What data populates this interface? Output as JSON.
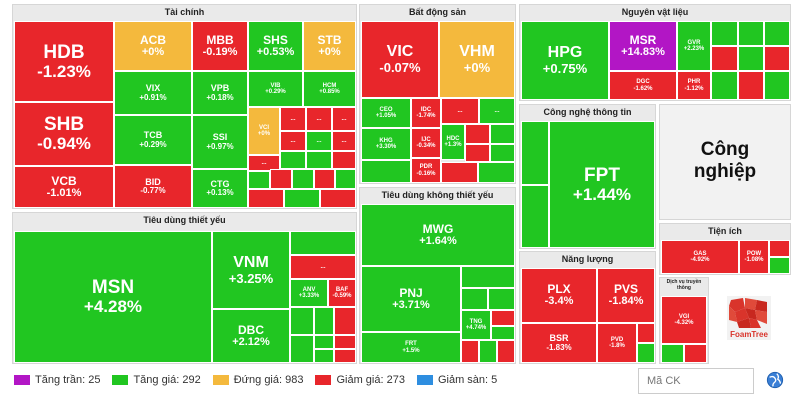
{
  "sectors": {
    "finance": "Tài chính",
    "real_estate": "Bất động sản",
    "materials": "Nguyên vật liệu",
    "it": "Công nghệ thông tin",
    "industrial": "Công nghiệp",
    "staples": "Tiêu dùng thiết yếu",
    "discretionary": "Tiêu dùng không thiết yếu",
    "energy": "Năng lượng",
    "utilities": "Tiện ích",
    "travel_services": "Dịch vụ truyền thông"
  },
  "stocks": {
    "HDB": {
      "symbol": "HDB",
      "change": "-1.23%"
    },
    "ACB": {
      "symbol": "ACB",
      "change": "+0%"
    },
    "MBB": {
      "symbol": "MBB",
      "change": "-0.19%"
    },
    "SHS": {
      "symbol": "SHS",
      "change": "+0.53%"
    },
    "STB": {
      "symbol": "STB",
      "change": "+0%"
    },
    "VIX": {
      "symbol": "VIX",
      "change": "+0.91%"
    },
    "VPB": {
      "symbol": "VPB",
      "change": "+0.18%"
    },
    "VIB": {
      "symbol": "VIB",
      "change": "+0.29%"
    },
    "HCM": {
      "symbol": "HCM",
      "change": "+0.85%"
    },
    "SHB": {
      "symbol": "SHB",
      "change": "-0.94%"
    },
    "TCB": {
      "symbol": "TCB",
      "change": "+0.29%"
    },
    "SSI": {
      "symbol": "SSI",
      "change": "+0.97%"
    },
    "VCI": {
      "symbol": "VCI",
      "change": "+0%"
    },
    "VCB": {
      "symbol": "VCB",
      "change": "-1.01%"
    },
    "BID": {
      "symbol": "BID",
      "change": "-0.77%"
    },
    "CTG": {
      "symbol": "CTG",
      "change": "+0.13%"
    },
    "VIC": {
      "symbol": "VIC",
      "change": "-0.07%"
    },
    "VHM": {
      "symbol": "VHM",
      "change": "+0%"
    },
    "CEO": {
      "symbol": "CEO",
      "change": "+1.05%"
    },
    "IDC": {
      "symbol": "IDC",
      "change": "-1.74%"
    },
    "KHG": {
      "symbol": "KHG",
      "change": "+3.30%"
    },
    "IJC": {
      "symbol": "IJC",
      "change": "-0.34%"
    },
    "HDC": {
      "symbol": "HDC",
      "change": "+1.3%"
    },
    "PDR": {
      "symbol": "PDR",
      "change": "-0.16%"
    },
    "HPG": {
      "symbol": "HPG",
      "change": "+0.75%"
    },
    "MSR": {
      "symbol": "MSR",
      "change": "+14.83%"
    },
    "GVR": {
      "symbol": "GVR",
      "change": "+2.23%"
    },
    "DGC": {
      "symbol": "DGC",
      "change": "-1.62%"
    },
    "PHR": {
      "symbol": "PHR",
      "change": "-1.12%"
    },
    "FPT": {
      "symbol": "FPT",
      "change": "+1.44%"
    },
    "MSN": {
      "symbol": "MSN",
      "change": "+4.28%"
    },
    "VNM": {
      "symbol": "VNM",
      "change": "+3.25%"
    },
    "DBC": {
      "symbol": "DBC",
      "change": "+2.12%"
    },
    "ANV": {
      "symbol": "ANV",
      "change": "+3.33%"
    },
    "BAF": {
      "symbol": "BAF",
      "change": "-0.59%"
    },
    "MWG": {
      "symbol": "MWG",
      "change": "+1.64%"
    },
    "PNJ": {
      "symbol": "PNJ",
      "change": "+3.71%"
    },
    "FRT": {
      "symbol": "FRT",
      "change": "+1.5%"
    },
    "TNG": {
      "symbol": "TNG",
      "change": "+4.74%"
    },
    "PLX": {
      "symbol": "PLX",
      "change": "-3.4%"
    },
    "PVS": {
      "symbol": "PVS",
      "change": "-1.84%"
    },
    "BSR": {
      "symbol": "BSR",
      "change": "-1.83%"
    },
    "PVD": {
      "symbol": "PVD",
      "change": "-1.8%"
    },
    "GAS": {
      "symbol": "GAS",
      "change": "-4.92%"
    },
    "POW": {
      "symbol": "POW",
      "change": "-1.08%"
    },
    "VGI": {
      "symbol": "VGI",
      "change": "-4.32%"
    }
  },
  "more_label": "...",
  "legend": {
    "ceiling": "Tăng trần: 25",
    "up": "Tăng giá: 292",
    "flat": "Đứng giá: 983",
    "down": "Giảm giá: 273",
    "floor": "Giảm sàn: 5"
  },
  "colors": {
    "ceiling": "#b216c5",
    "up": "#21c621",
    "flat": "#f4b93d",
    "down": "#e8262b",
    "floor": "#2e8ee0"
  },
  "search": {
    "placeholder": "Mã CK"
  },
  "logo": {
    "text": "FoamTree"
  }
}
